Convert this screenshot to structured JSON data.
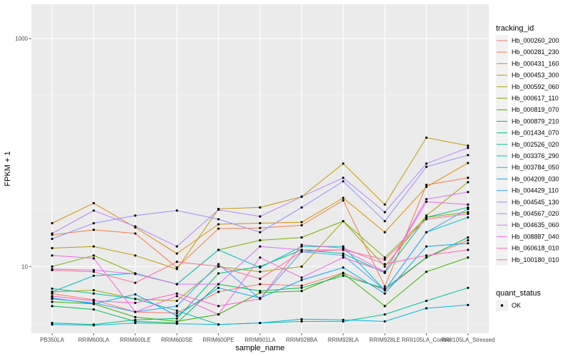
{
  "chart_data": {
    "type": "line",
    "xlabel": "sample_name",
    "ylabel": "FPKM + 1",
    "y_scale": "log10",
    "ylim": [
      2.6,
      2000
    ],
    "y_ticks": [
      10,
      1000
    ],
    "y_tick_labels": [
      "10",
      "1000"
    ],
    "grid": true,
    "background": "#ebebeb",
    "legend_position": "right",
    "legend_title": "tracking_id",
    "shape_legend": {
      "title": "quant_status",
      "items": [
        "OK"
      ]
    },
    "categories": [
      "PB350LA",
      "RRIM600LA",
      "RRIM600LE",
      "RRIM600SE",
      "RRIM600PE",
      "RRIM901LA",
      "RRIM928BA",
      "RRIM928LA",
      "RRIM928LE",
      "RRII105LA_Control",
      "RRII105LA_Stressed"
    ],
    "series": [
      {
        "name": "Hb_000260_200",
        "color": "#F8766D",
        "values": [
          5.8,
          5.1,
          4.0,
          3.9,
          6.0,
          7.0,
          6.8,
          8.8,
          6.2,
          12.0,
          17.0
        ]
      },
      {
        "name": "Hb_000281_230",
        "color": "#F07E46",
        "values": [
          19.0,
          21.0,
          19.5,
          9.8,
          21.5,
          21.8,
          23.0,
          38.0,
          6.7,
          52.0,
          60.0
        ]
      },
      {
        "name": "Hb_000431_160",
        "color": "#D89000",
        "values": [
          24.0,
          36.0,
          22.0,
          13.0,
          23.5,
          24.0,
          24.5,
          40.0,
          20.0,
          50.0,
          81.0
        ]
      },
      {
        "name": "Hb_000453_300",
        "color": "#C19A00",
        "values": [
          14.5,
          15.0,
          12.5,
          9.5,
          32.0,
          33.0,
          41.0,
          80.0,
          35.0,
          135.0,
          115.0
        ]
      },
      {
        "name": "Hb_000592_060",
        "color": "#A3A500",
        "values": [
          6.0,
          6.2,
          5.2,
          5.0,
          10.0,
          9.0,
          10.0,
          25.0,
          10.0,
          28.0,
          55.0
        ]
      },
      {
        "name": "Hb_000617_110",
        "color": "#7CAE00",
        "values": [
          10.0,
          12.5,
          8.7,
          7.0,
          14.0,
          17.0,
          18.0,
          25.0,
          12.0,
          27.0,
          30.0
        ]
      },
      {
        "name": "Hb_000819_070",
        "color": "#39B600",
        "values": [
          4.9,
          4.7,
          3.6,
          3.3,
          3.8,
          5.9,
          6.1,
          8.7,
          4.5,
          9.0,
          12.0
        ]
      },
      {
        "name": "Hb_000879_210",
        "color": "#00BB4E",
        "values": [
          4.5,
          4.2,
          3.3,
          3.2,
          7.0,
          6.1,
          6.5,
          8.3,
          6.4,
          12.0,
          18.0
        ]
      },
      {
        "name": "Hb_001434_070",
        "color": "#00BF7D",
        "values": [
          3.2,
          3.1,
          3.4,
          3.5,
          8.7,
          10.0,
          14.0,
          13.0,
          8.8,
          27.0,
          33.0
        ]
      },
      {
        "name": "Hb_002526_020",
        "color": "#00C1A3",
        "values": [
          6.4,
          5.8,
          5.2,
          4.1,
          3.1,
          3.2,
          3.3,
          3.3,
          3.8,
          5.0,
          6.5
        ]
      },
      {
        "name": "Hb_003376_290",
        "color": "#00BFC4",
        "values": [
          6.0,
          8.3,
          8.7,
          7.0,
          14.0,
          9.8,
          15.0,
          15.0,
          6.2,
          20.0,
          27.0
        ]
      },
      {
        "name": "Hb_003784_050",
        "color": "#00B8E7",
        "values": [
          3.1,
          3.05,
          3.2,
          3.15,
          3.1,
          3.2,
          3.45,
          3.4,
          3.3,
          4.3,
          4.6
        ]
      },
      {
        "name": "Hb_004209_030",
        "color": "#00A9FF",
        "values": [
          5.3,
          4.7,
          5.7,
          3.7,
          6.5,
          5.3,
          7.6,
          9.8,
          5.8,
          15.0,
          16.0
        ]
      },
      {
        "name": "Hb_004429_110",
        "color": "#35A2FF",
        "values": [
          5.2,
          4.8,
          4.0,
          4.5,
          10.5,
          5.2,
          13.5,
          12.5,
          6.2,
          20.0,
          32.0
        ]
      },
      {
        "name": "Hb_004545_130",
        "color": "#9590FF",
        "values": [
          17.5,
          24.0,
          28.0,
          31.0,
          26.0,
          20.0,
          33.0,
          56.0,
          25.0,
          75.0,
          95.0
        ]
      },
      {
        "name": "Hb_004567_020",
        "color": "#B983FF",
        "values": [
          19.5,
          31.0,
          22.5,
          15.0,
          31.5,
          27.5,
          41.0,
          60.0,
          30.0,
          80.0,
          110.0
        ]
      },
      {
        "name": "Hb_004635_060",
        "color": "#DC71FA",
        "values": [
          9.5,
          9.3,
          8.6,
          7.0,
          7.0,
          15.0,
          14.0,
          14.0,
          9.0,
          39.0,
          45.0
        ]
      },
      {
        "name": "Hb_008887_040",
        "color": "#F564E3",
        "values": [
          12.5,
          11.8,
          4.0,
          5.5,
          3.8,
          12.0,
          8.0,
          12.0,
          9.0,
          37.0,
          35.0
        ]
      },
      {
        "name": "Hb_060618_010",
        "color": "#FF61C3",
        "values": [
          5.5,
          5.0,
          4.8,
          5.8,
          4.5,
          5.2,
          15.5,
          14.5,
          10.5,
          12.5,
          14.0
        ]
      },
      {
        "name": "Hb_100180_010",
        "color": "#FF6C91",
        "values": [
          9.3,
          9.0,
          7.2,
          11.0,
          10.0,
          7.8,
          13.5,
          14.0,
          11.5,
          26.0,
          29.0
        ]
      }
    ]
  }
}
